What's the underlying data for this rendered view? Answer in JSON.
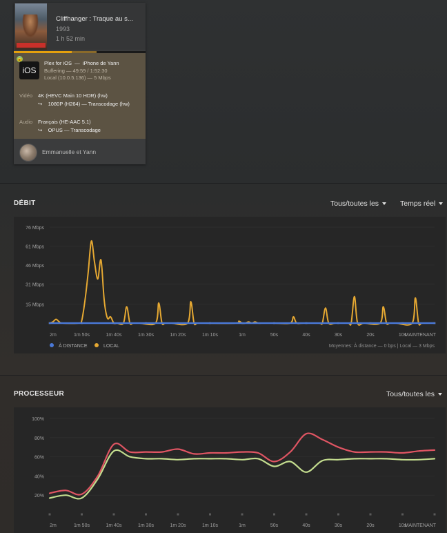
{
  "session": {
    "title": "Cliffhanger : Traque au s...",
    "year": "1993",
    "duration": "1 h 52 min",
    "progress": 0.44,
    "buffered": 0.63,
    "secure_badge": "🔒",
    "player": {
      "icon_text": "iOS",
      "app": "Plex for iOS",
      "separator": "—",
      "device": "iPhone de Yann",
      "status": "Buffering — 49:59 / 1:52:30",
      "network": "Local (10.0.5.136) — 5 Mbps"
    },
    "video": {
      "label": "Vidéo",
      "source": "4K (HEVC Main 10 HDR) (hw)",
      "arrow": "↪",
      "target": "1080P (H264) — Transcodage (hw)"
    },
    "audio": {
      "label": "Audio",
      "source": "Français (HE-AAC 5.1)",
      "arrow": "↪",
      "target": "OPUS — Transcodage"
    },
    "user": "Emmanuelle et Yann"
  },
  "bandwidth": {
    "title": "DÉBIT",
    "filter_label": "Tous/toutes les",
    "timespan_label": "Temps réel",
    "legend_remote": "À DISTANCE",
    "legend_local": "LOCAL",
    "averages": "Moyennes: À distance — 0 bps | Local — 3 Mbps",
    "colors": {
      "remote": "#4a78d6",
      "local": "#e5a832"
    }
  },
  "cpu": {
    "title": "PROCESSEUR",
    "filter_label": "Tous/toutes les",
    "colors": {
      "process": "#e05563",
      "system": "#c3dc8e"
    }
  },
  "chart_data": [
    {
      "type": "line",
      "title": "DÉBIT",
      "ylim": [
        0,
        76
      ],
      "yticks": [
        "76 Mbps",
        "61 Mbps",
        "46 Mbps",
        "31 Mbps",
        "15 Mbps"
      ],
      "ytick_values": [
        76,
        61,
        46,
        31,
        15
      ],
      "xticks": [
        "2m",
        "1m 50s",
        "1m 40s",
        "1m 30s",
        "1m 20s",
        "1m 10s",
        "1m",
        "50s",
        "40s",
        "30s",
        "20s",
        "10s",
        "MAINTENANT"
      ],
      "x_seconds_ago": [
        120,
        110,
        100,
        90,
        80,
        70,
        60,
        50,
        40,
        30,
        20,
        10,
        0
      ],
      "series": [
        {
          "name": "À DISTANCE",
          "x": [
            120,
            0
          ],
          "values": [
            0,
            0
          ]
        },
        {
          "name": "LOCAL",
          "x": [
            120,
            119,
            118,
            117,
            116,
            111,
            110,
            109,
            108,
            107,
            106,
            105,
            104,
            103,
            102,
            101,
            100,
            99,
            97,
            96,
            95,
            94,
            92,
            87,
            86,
            85,
            84,
            82,
            77,
            76,
            75,
            74,
            72,
            62,
            61,
            60,
            59,
            58,
            57,
            56,
            55,
            54,
            53,
            52,
            50,
            45,
            44,
            43,
            41,
            36,
            35,
            34,
            33,
            31,
            27,
            26,
            25,
            24,
            22,
            17,
            16,
            15,
            14,
            12,
            7,
            6,
            5,
            4,
            2,
            0
          ],
          "values": [
            0,
            1,
            3,
            1,
            0,
            0,
            2,
            18,
            40,
            65,
            48,
            35,
            50,
            18,
            4,
            5,
            0,
            0,
            0,
            13,
            0,
            0,
            0,
            0,
            16,
            0,
            0,
            0,
            0,
            17,
            0,
            0,
            0,
            0,
            1.5,
            0,
            0,
            1,
            0,
            1,
            0,
            0,
            0,
            0,
            0,
            0,
            5,
            0,
            0,
            0,
            0,
            12,
            0,
            0,
            0,
            0,
            21,
            0,
            0,
            0,
            13,
            0,
            0,
            0,
            0,
            20,
            0,
            0,
            0,
            0
          ]
        }
      ]
    },
    {
      "type": "line",
      "title": "PROCESSEUR",
      "ylim": [
        0,
        100
      ],
      "yticks": [
        "100%",
        "80%",
        "60%",
        "40%",
        "20%"
      ],
      "ytick_values": [
        100,
        80,
        60,
        40,
        20
      ],
      "xticks": [
        "2m",
        "1m 50s",
        "1m 40s",
        "1m 30s",
        "1m 20s",
        "1m 10s",
        "1m",
        "50s",
        "40s",
        "30s",
        "20s",
        "10s",
        "MAINTENANT"
      ],
      "x_seconds_ago": [
        120,
        110,
        100,
        90,
        80,
        70,
        60,
        50,
        40,
        30,
        20,
        10,
        0
      ],
      "series": [
        {
          "x": [
            120,
            115,
            110,
            105,
            100,
            95,
            90,
            85,
            80,
            75,
            70,
            65,
            60,
            55,
            50,
            45,
            40,
            35,
            30,
            25,
            20,
            15,
            10,
            5,
            0
          ],
          "values": [
            22,
            25,
            21,
            40,
            73,
            65,
            65,
            65,
            68,
            63,
            64,
            64,
            65,
            64,
            55,
            65,
            84,
            78,
            70,
            65,
            65,
            65,
            64,
            66,
            67
          ]
        },
        {
          "x": [
            120,
            115,
            110,
            105,
            100,
            95,
            90,
            85,
            80,
            75,
            70,
            65,
            60,
            55,
            50,
            45,
            40,
            35,
            30,
            25,
            20,
            15,
            10,
            5,
            0
          ],
          "values": [
            17,
            20,
            17,
            37,
            66,
            60,
            58,
            58,
            57,
            58,
            58,
            58,
            57,
            58,
            50,
            55,
            44,
            56,
            57,
            58,
            58,
            58,
            57,
            57,
            58
          ]
        }
      ]
    }
  ]
}
